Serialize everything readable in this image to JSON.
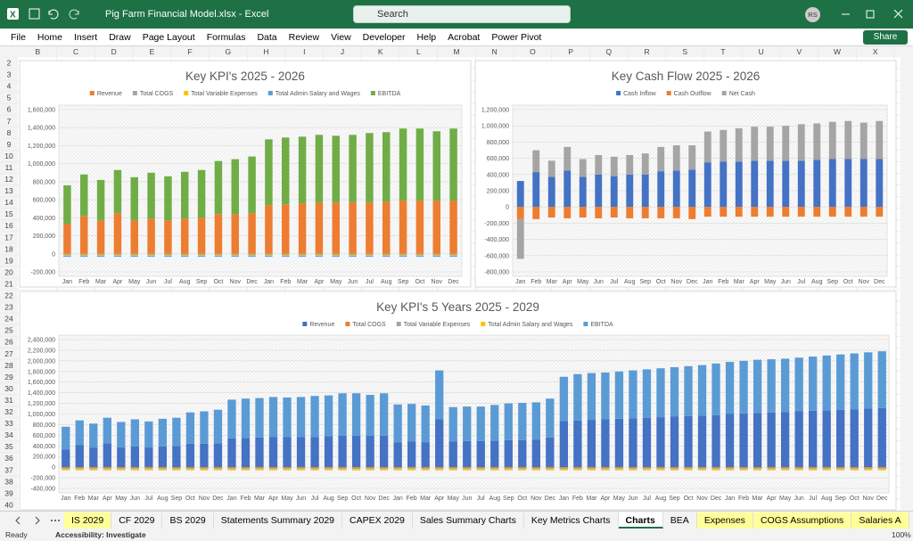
{
  "window": {
    "title": "Pig Farm Financial Model.xlsx  -  Excel",
    "search": "Search",
    "user": "RS",
    "share": "Share"
  },
  "menu": [
    "File",
    "Home",
    "Insert",
    "Draw",
    "Page Layout",
    "Formulas",
    "Data",
    "Review",
    "View",
    "Developer",
    "Help",
    "Acrobat",
    "Power Pivot"
  ],
  "columns": [
    "B",
    "C",
    "D",
    "E",
    "F",
    "G",
    "H",
    "I",
    "J",
    "K",
    "L",
    "M",
    "N",
    "O",
    "P",
    "Q",
    "R",
    "S",
    "T",
    "U",
    "V",
    "W",
    "X"
  ],
  "rows": [
    2,
    3,
    4,
    5,
    6,
    7,
    8,
    9,
    10,
    11,
    12,
    13,
    14,
    15,
    16,
    17,
    18,
    19,
    20,
    21,
    22,
    23,
    24,
    25,
    26,
    27,
    28,
    29,
    30,
    31,
    32,
    33,
    34,
    35,
    36,
    37,
    38,
    39,
    40
  ],
  "sheet_tabs": [
    {
      "name": "IS 2029",
      "color": "#ffff99"
    },
    {
      "name": "CF 2029",
      "color": "#f3f3f3"
    },
    {
      "name": "BS 2029",
      "color": "#f3f3f3"
    },
    {
      "name": "Statements Summary 2029",
      "color": "#f3f3f3"
    },
    {
      "name": "CAPEX 2029",
      "color": "#f3f3f3"
    },
    {
      "name": "Sales Summary Charts",
      "color": "#f3f3f3"
    },
    {
      "name": "Key Metrics Charts",
      "color": "#f3f3f3"
    },
    {
      "name": "Charts",
      "color": "#ffffff",
      "active": true
    },
    {
      "name": "BEA",
      "color": "#f3f3f3"
    },
    {
      "name": "Expenses",
      "color": "#ffff99"
    },
    {
      "name": "COGS Assumptions",
      "color": "#ffff99"
    },
    {
      "name": "Salaries A",
      "color": "#ffff99"
    }
  ],
  "status": {
    "mode": "Ready",
    "accessibility": "Accessibility: Investigate",
    "zoom": "100%"
  },
  "chart_data": [
    {
      "type": "bar",
      "stacked": true,
      "title": "Key KPI's 2025 - 2026",
      "legend": "top",
      "grid": true,
      "categories": [
        "Jan",
        "Feb",
        "Mar",
        "Apr",
        "May",
        "Jun",
        "Jul",
        "Aug",
        "Sep",
        "Oct",
        "Nov",
        "Dec",
        "Jan",
        "Feb",
        "Mar",
        "Apr",
        "May",
        "Jun",
        "Jul",
        "Aug",
        "Sep",
        "Oct",
        "Nov",
        "Dec"
      ],
      "series": [
        {
          "name": "Revenue",
          "color": "#ed7d31",
          "values": [
            330000,
            420000,
            370000,
            450000,
            370000,
            390000,
            370000,
            390000,
            400000,
            440000,
            440000,
            450000,
            540000,
            550000,
            560000,
            570000,
            570000,
            570000,
            570000,
            580000,
            590000,
            590000,
            590000,
            590000
          ]
        },
        {
          "name": "Total COGS",
          "color": "#a5a5a5",
          "values": [
            -15000,
            -15000,
            -15000,
            -15000,
            -15000,
            -15000,
            -15000,
            -15000,
            -15000,
            -15000,
            -15000,
            -15000,
            -15000,
            -15000,
            -15000,
            -15000,
            -15000,
            -15000,
            -15000,
            -15000,
            -15000,
            -15000,
            -15000,
            -15000
          ]
        },
        {
          "name": "Total Variable Expenses",
          "color": "#ffc000",
          "values": [
            -8000,
            -8000,
            -8000,
            -8000,
            -8000,
            -8000,
            -8000,
            -8000,
            -8000,
            -8000,
            -8000,
            -8000,
            -8000,
            -8000,
            -8000,
            -8000,
            -8000,
            -8000,
            -8000,
            -8000,
            -8000,
            -8000,
            -8000,
            -8000
          ]
        },
        {
          "name": "Total Admin Salary and Wages",
          "color": "#5b9bd5",
          "values": [
            -10000,
            -10000,
            -10000,
            -10000,
            -10000,
            -10000,
            -10000,
            -10000,
            -10000,
            -10000,
            -10000,
            -10000,
            -10000,
            -10000,
            -10000,
            -10000,
            -10000,
            -10000,
            -10000,
            -10000,
            -10000,
            -10000,
            -10000,
            -10000
          ]
        },
        {
          "name": "EBITDA",
          "color": "#70ad47",
          "values": [
            430000,
            460000,
            450000,
            480000,
            480000,
            510000,
            490000,
            520000,
            530000,
            590000,
            610000,
            630000,
            730000,
            740000,
            740000,
            750000,
            740000,
            750000,
            770000,
            770000,
            800000,
            800000,
            770000,
            800000
          ]
        }
      ],
      "ylim": [
        -200000,
        1600000
      ],
      "yticks": [
        {
          "value": -200000,
          "label": "-200,000"
        },
        0,
        {
          "value": 200000,
          "label": "200,000"
        },
        {
          "value": 400000,
          "label": "400,000"
        },
        {
          "value": 600000,
          "label": "600,000"
        },
        {
          "value": 800000,
          "label": "800,000"
        },
        {
          "value": 1000000,
          "label": "1,000,000"
        },
        {
          "value": 1200000,
          "label": "1,200,000"
        },
        {
          "value": 1400000,
          "label": "1,400,000"
        },
        {
          "value": 1600000,
          "label": "1,600,000"
        }
      ]
    },
    {
      "type": "bar",
      "stacked": true,
      "title": "Key Cash Flow 2025 - 2026",
      "legend": "top",
      "grid": true,
      "categories": [
        "Jan",
        "Feb",
        "Mar",
        "Apr",
        "May",
        "Jun",
        "Jul",
        "Aug",
        "Sep",
        "Oct",
        "Nov",
        "Dec",
        "Jan",
        "Feb",
        "Mar",
        "Apr",
        "May",
        "Jun",
        "Jul",
        "Aug",
        "Sep",
        "Oct",
        "Nov",
        "Dec"
      ],
      "series": [
        {
          "name": "Cash Inflow",
          "color": "#4472c4",
          "values": [
            320000,
            430000,
            370000,
            450000,
            370000,
            400000,
            380000,
            400000,
            400000,
            440000,
            450000,
            460000,
            550000,
            560000,
            560000,
            570000,
            570000,
            570000,
            570000,
            580000,
            590000,
            590000,
            590000,
            590000
          ]
        },
        {
          "name": "Cash Outflow",
          "color": "#ed7d31",
          "values": [
            -150000,
            -150000,
            -130000,
            -140000,
            -130000,
            -140000,
            -130000,
            -140000,
            -140000,
            -140000,
            -140000,
            -150000,
            -120000,
            -120000,
            -120000,
            -120000,
            -120000,
            -120000,
            -120000,
            -120000,
            -120000,
            -120000,
            -120000,
            -120000
          ]
        },
        {
          "name": "Net Cash",
          "color": "#a5a5a5",
          "values": [
            -490000,
            270000,
            200000,
            290000,
            220000,
            240000,
            240000,
            240000,
            260000,
            300000,
            310000,
            300000,
            380000,
            390000,
            410000,
            420000,
            420000,
            430000,
            450000,
            450000,
            460000,
            470000,
            450000,
            470000
          ]
        }
      ],
      "ylim": [
        -800000,
        1200000
      ],
      "yticks": [
        {
          "value": -800000,
          "label": "-800,000"
        },
        {
          "value": -600000,
          "label": "-600,000"
        },
        {
          "value": -400000,
          "label": "-400,000"
        },
        {
          "value": -200000,
          "label": "-200,000"
        },
        0,
        {
          "value": 200000,
          "label": "200,000"
        },
        {
          "value": 400000,
          "label": "400,000"
        },
        {
          "value": 600000,
          "label": "600,000"
        },
        {
          "value": 800000,
          "label": "800,000"
        },
        {
          "value": 1000000,
          "label": "1,000,000"
        },
        {
          "value": 1200000,
          "label": "1,200,000"
        }
      ]
    },
    {
      "type": "bar",
      "stacked": true,
      "title": "Key KPI's 5 Years 2025 - 2029",
      "legend": "top",
      "grid": true,
      "categories": [
        "Jan",
        "Feb",
        "Mar",
        "Apr",
        "May",
        "Jun",
        "Jul",
        "Aug",
        "Sep",
        "Oct",
        "Nov",
        "Dec",
        "Jan",
        "Feb",
        "Mar",
        "Apr",
        "May",
        "Jun",
        "Jul",
        "Aug",
        "Sep",
        "Oct",
        "Nov",
        "Dec",
        "Jan",
        "Feb",
        "Mar",
        "Apr",
        "May",
        "Jun",
        "Jul",
        "Aug",
        "Sep",
        "Oct",
        "Nov",
        "Dec",
        "Jan",
        "Feb",
        "Mar",
        "Apr",
        "May",
        "Jun",
        "Jul",
        "Aug",
        "Sep",
        "Oct",
        "Nov",
        "Dec",
        "Jan",
        "Feb",
        "Mar",
        "Apr",
        "May",
        "Jun",
        "Jul",
        "Aug",
        "Sep",
        "Oct",
        "Nov",
        "Dec"
      ],
      "series": [
        {
          "name": "Revenue",
          "color": "#4472c4",
          "values": [
            330000,
            420000,
            370000,
            450000,
            370000,
            390000,
            370000,
            390000,
            400000,
            440000,
            440000,
            450000,
            540000,
            550000,
            560000,
            570000,
            570000,
            570000,
            570000,
            580000,
            590000,
            590000,
            590000,
            590000,
            470000,
            480000,
            470000,
            900000,
            480000,
            490000,
            490000,
            500000,
            510000,
            510000,
            520000,
            560000,
            870000,
            880000,
            890000,
            900000,
            910000,
            920000,
            930000,
            940000,
            950000,
            960000,
            970000,
            980000,
            1000000,
            1010000,
            1020000,
            1030000,
            1040000,
            1050000,
            1060000,
            1070000,
            1080000,
            1090000,
            1100000,
            1110000
          ]
        },
        {
          "name": "Total COGS",
          "color": "#ed7d31",
          "values": [
            -15000,
            -15000,
            -15000,
            -15000,
            -15000,
            -15000,
            -15000,
            -15000,
            -15000,
            -15000,
            -15000,
            -15000,
            -15000,
            -15000,
            -15000,
            -15000,
            -15000,
            -15000,
            -15000,
            -15000,
            -15000,
            -15000,
            -15000,
            -15000,
            -15000,
            -15000,
            -15000,
            -15000,
            -15000,
            -15000,
            -15000,
            -15000,
            -15000,
            -15000,
            -15000,
            -15000,
            -15000,
            -15000,
            -15000,
            -15000,
            -15000,
            -15000,
            -15000,
            -15000,
            -15000,
            -15000,
            -15000,
            -15000,
            -15000,
            -15000,
            -15000,
            -15000,
            -15000,
            -15000,
            -15000,
            -15000,
            -15000,
            -15000,
            -15000,
            -15000
          ]
        },
        {
          "name": "Total Variable Expenses",
          "color": "#a5a5a5",
          "values": [
            -20000,
            -20000,
            -20000,
            -20000,
            -20000,
            -20000,
            -20000,
            -20000,
            -20000,
            -20000,
            -20000,
            -20000,
            -20000,
            -20000,
            -20000,
            -20000,
            -20000,
            -20000,
            -20000,
            -20000,
            -20000,
            -20000,
            -20000,
            -20000,
            -20000,
            -20000,
            -20000,
            -20000,
            -20000,
            -20000,
            -20000,
            -20000,
            -20000,
            -20000,
            -20000,
            -20000,
            -20000,
            -20000,
            -20000,
            -20000,
            -20000,
            -20000,
            -20000,
            -20000,
            -20000,
            -20000,
            -20000,
            -20000,
            -20000,
            -20000,
            -20000,
            -20000,
            -20000,
            -20000,
            -20000,
            -20000,
            -20000,
            -20000,
            -20000,
            -20000
          ]
        },
        {
          "name": "Total Admin Salary and Wages",
          "color": "#ffc000",
          "values": [
            -25000,
            -25000,
            -25000,
            -25000,
            -25000,
            -25000,
            -25000,
            -25000,
            -25000,
            -25000,
            -25000,
            -25000,
            -25000,
            -25000,
            -25000,
            -25000,
            -25000,
            -25000,
            -25000,
            -25000,
            -25000,
            -25000,
            -25000,
            -25000,
            -25000,
            -25000,
            -25000,
            -25000,
            -25000,
            -25000,
            -25000,
            -25000,
            -25000,
            -25000,
            -25000,
            -25000,
            -25000,
            -25000,
            -25000,
            -25000,
            -25000,
            -25000,
            -25000,
            -25000,
            -25000,
            -25000,
            -25000,
            -25000,
            -25000,
            -25000,
            -25000,
            -25000,
            -25000,
            -25000,
            -25000,
            -25000,
            -25000,
            -25000,
            -25000,
            -25000
          ]
        },
        {
          "name": "EBITDA",
          "color": "#5b9bd5",
          "values": [
            430000,
            460000,
            450000,
            480000,
            480000,
            510000,
            490000,
            520000,
            530000,
            590000,
            610000,
            630000,
            730000,
            740000,
            740000,
            750000,
            740000,
            750000,
            770000,
            770000,
            800000,
            800000,
            770000,
            800000,
            710000,
            710000,
            690000,
            920000,
            650000,
            650000,
            650000,
            670000,
            690000,
            700000,
            700000,
            730000,
            830000,
            870000,
            880000,
            880000,
            890000,
            900000,
            910000,
            920000,
            930000,
            940000,
            950000,
            970000,
            980000,
            990000,
            1000000,
            1000000,
            1000000,
            1010000,
            1020000,
            1030000,
            1040000,
            1050000,
            1060000,
            1070000
          ]
        }
      ],
      "ylim": [
        -400000,
        2400000
      ],
      "yticks": [
        {
          "value": -400000,
          "label": "-400,000"
        },
        {
          "value": -200000,
          "label": "-200,000"
        },
        0,
        {
          "value": 200000,
          "label": "200,000"
        },
        {
          "value": 400000,
          "label": "400,000"
        },
        {
          "value": 600000,
          "label": "600,000"
        },
        {
          "value": 800000,
          "label": "800,000"
        },
        {
          "value": 1000000,
          "label": "1,000,000"
        },
        {
          "value": 1200000,
          "label": "1,200,000"
        },
        {
          "value": 1400000,
          "label": "1,400,000"
        },
        {
          "value": 1600000,
          "label": "1,600,000"
        },
        {
          "value": 1800000,
          "label": "1,800,000"
        },
        {
          "value": 2000000,
          "label": "2,000,000"
        },
        {
          "value": 2200000,
          "label": "2,200,000"
        },
        {
          "value": 2400000,
          "label": "2,400,000"
        }
      ]
    }
  ]
}
